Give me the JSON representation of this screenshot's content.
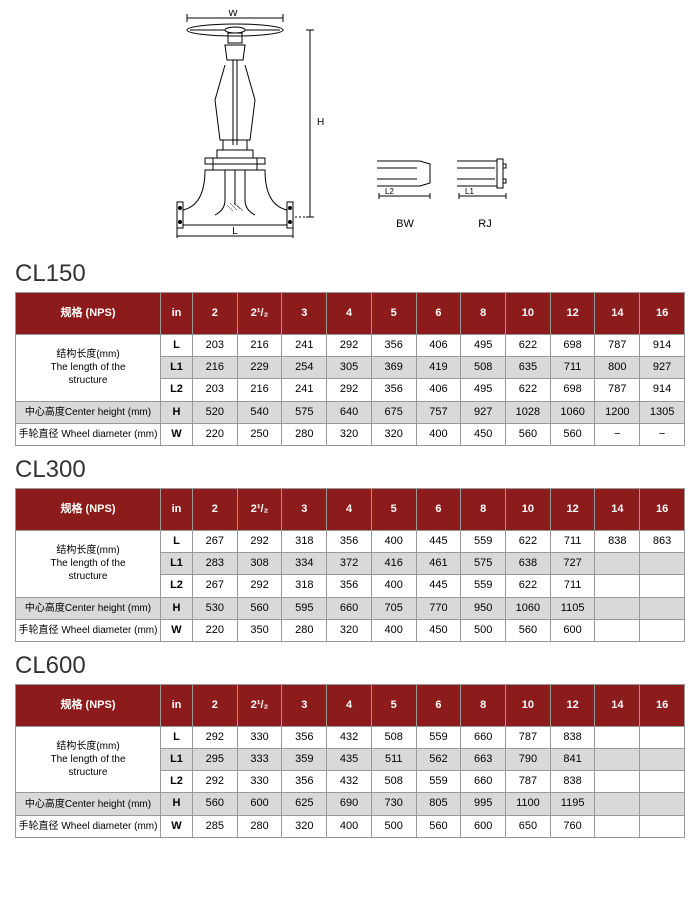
{
  "diagram": {
    "w_label": "W",
    "h_label": "H",
    "l_label": "L",
    "bw_label": "BW",
    "rj_label": "RJ",
    "l2_label": "L2",
    "l1_label": "L1",
    "stroke": "#000000"
  },
  "header": {
    "spec": "规格 (NPS)",
    "in": "in",
    "sizes": [
      "2",
      "2¹/₂",
      "3",
      "4",
      "5",
      "6",
      "8",
      "10",
      "12",
      "14",
      "16"
    ]
  },
  "row_labels": {
    "length": [
      "结构长度(mm)",
      "The length of the",
      "structure"
    ],
    "center": "中心高度Center height (mm)",
    "wheel": "手轮直径 Wheel diameter (mm)"
  },
  "row_codes": {
    "L": "L",
    "L1": "L1",
    "L2": "L2",
    "H": "H",
    "W": "W"
  },
  "tables": [
    {
      "title": "CL150",
      "L": [
        "203",
        "216",
        "241",
        "292",
        "356",
        "406",
        "495",
        "622",
        "698",
        "787",
        "914"
      ],
      "L1": [
        "216",
        "229",
        "254",
        "305",
        "369",
        "419",
        "508",
        "635",
        "711",
        "800",
        "927"
      ],
      "L2": [
        "203",
        "216",
        "241",
        "292",
        "356",
        "406",
        "495",
        "622",
        "698",
        "787",
        "914"
      ],
      "H": [
        "520",
        "540",
        "575",
        "640",
        "675",
        "757",
        "927",
        "1028",
        "1060",
        "1200",
        "1305"
      ],
      "W": [
        "220",
        "250",
        "280",
        "320",
        "320",
        "400",
        "450",
        "560",
        "560",
        "−",
        "−"
      ]
    },
    {
      "title": "CL300",
      "L": [
        "267",
        "292",
        "318",
        "356",
        "400",
        "445",
        "559",
        "622",
        "711",
        "838",
        "863"
      ],
      "L1": [
        "283",
        "308",
        "334",
        "372",
        "416",
        "461",
        "575",
        "638",
        "727",
        "",
        ""
      ],
      "L2": [
        "267",
        "292",
        "318",
        "356",
        "400",
        "445",
        "559",
        "622",
        "711",
        "",
        ""
      ],
      "H": [
        "530",
        "560",
        "595",
        "660",
        "705",
        "770",
        "950",
        "1060",
        "1105",
        "",
        ""
      ],
      "W": [
        "220",
        "350",
        "280",
        "320",
        "400",
        "450",
        "500",
        "560",
        "600",
        "",
        ""
      ]
    },
    {
      "title": "CL600",
      "L": [
        "292",
        "330",
        "356",
        "432",
        "508",
        "559",
        "660",
        "787",
        "838",
        "",
        ""
      ],
      "L1": [
        "295",
        "333",
        "359",
        "435",
        "511",
        "562",
        "663",
        "790",
        "841",
        "",
        ""
      ],
      "L2": [
        "292",
        "330",
        "356",
        "432",
        "508",
        "559",
        "660",
        "787",
        "838",
        "",
        ""
      ],
      "H": [
        "560",
        "600",
        "625",
        "690",
        "730",
        "805",
        "995",
        "1100",
        "1195",
        "",
        ""
      ],
      "W": [
        "285",
        "280",
        "320",
        "400",
        "500",
        "560",
        "600",
        "650",
        "760",
        "",
        ""
      ]
    }
  ],
  "style": {
    "header_bg": "#8c1c1c",
    "header_fg": "#ffffff",
    "grey_row": "#d9d9d9",
    "border": "#999999",
    "title_fontsize": 24,
    "cell_fontsize": 11,
    "label_fontsize": 10
  }
}
